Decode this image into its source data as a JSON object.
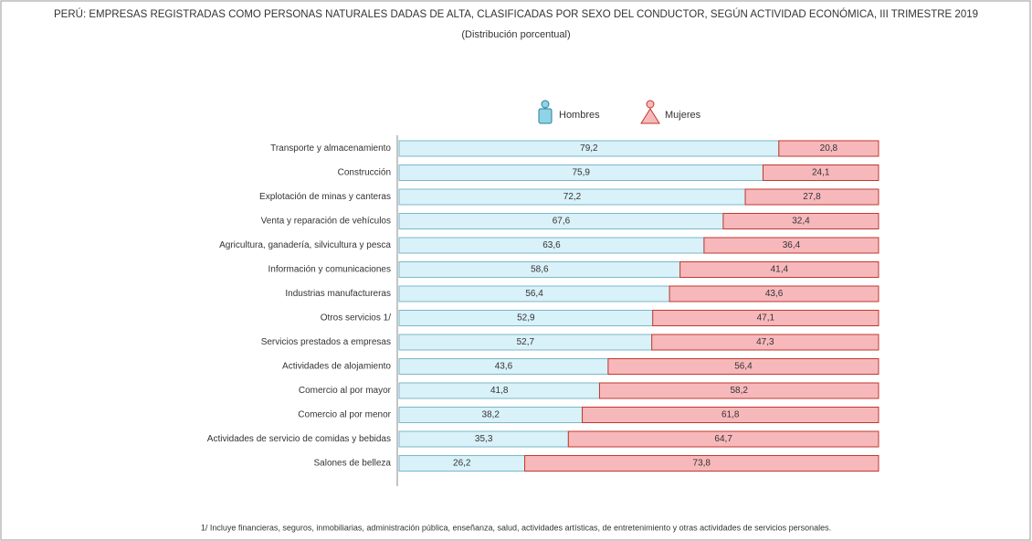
{
  "chart_data": {
    "type": "stacked_bar_horizontal",
    "title": "PERÚ: EMPRESAS REGISTRADAS COMO PERSONAS NATURALES DADAS DE ALTA, CLASIFICADAS POR SEXO DEL CONDUCTOR, SEGÚN ACTIVIDAD ECONÓMICA, III TRIMESTRE 2019",
    "subtitle": "(Distribución porcentual)",
    "categories": [
      "Transporte y almacenamiento",
      "Construcción",
      "Explotación de minas y canteras",
      "Venta y reparación de vehículos",
      "Agricultura, ganadería, silvicultura y pesca",
      "Información y comunicaciones",
      "Industrias manufactureras",
      "Otros servicios 1/",
      "Servicios prestados a empresas",
      "Actividades de alojamiento",
      "Comercio al por mayor",
      "Comercio al por menor",
      "Actividades de servicio de comidas y bebidas",
      "Salones de belleza"
    ],
    "series": [
      {
        "name": "Hombres",
        "color": "#d9f1f8",
        "values": [
          79.2,
          75.9,
          72.2,
          67.6,
          63.6,
          58.6,
          56.4,
          52.9,
          52.7,
          43.6,
          41.8,
          38.2,
          35.3,
          26.2
        ],
        "value_labels": [
          "79,2",
          "75,9",
          "72,2",
          "67,6",
          "63,6",
          "58,6",
          "56,4",
          "52,9",
          "52,7",
          "43,6",
          "41,8",
          "38,2",
          "35,3",
          "26,2"
        ]
      },
      {
        "name": "Mujeres",
        "color": "#f7b8bc",
        "values": [
          20.8,
          24.1,
          27.8,
          32.4,
          36.4,
          41.4,
          43.6,
          47.1,
          47.3,
          56.4,
          58.2,
          61.8,
          64.7,
          73.8
        ],
        "value_labels": [
          "20,8",
          "24,1",
          "27,8",
          "32,4",
          "36,4",
          "41,4",
          "43,6",
          "47,1",
          "47,3",
          "56,4",
          "58,2",
          "61,8",
          "64,7",
          "73,8"
        ]
      }
    ],
    "xlim": [
      0,
      100
    ],
    "footnote": "1/ Incluye financieras, seguros, inmobiliarias, administración pública, enseñanza, salud, actividades artísticas, de entretenimiento y otras actividades de servicios personales."
  }
}
